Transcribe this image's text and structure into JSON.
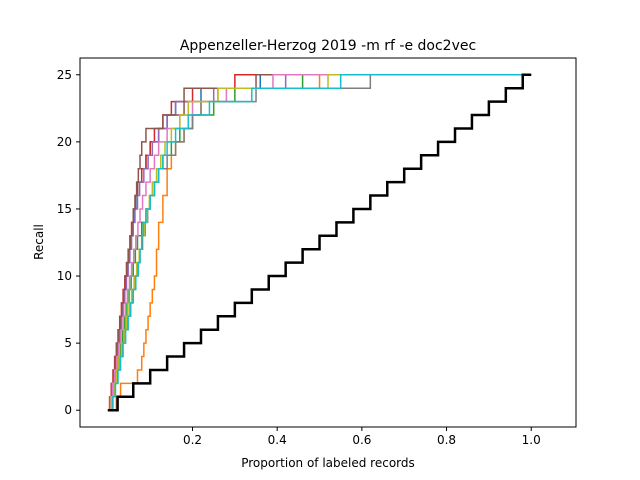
{
  "chart_data": {
    "type": "line",
    "title": "Appenzeller-Herzog 2019 -m rf -e doc2vec",
    "xlabel": "Proportion of labeled records",
    "ylabel": "Recall",
    "xlim": [
      -0.0658,
      1.1058
    ],
    "ylim": [
      -1.25,
      26.25
    ],
    "x_ticks": [
      0.2,
      0.4,
      0.6,
      0.8,
      1.0
    ],
    "x_tick_labels": [
      "0.2",
      "0.4",
      "0.6",
      "0.8",
      "1.0"
    ],
    "y_ticks": [
      0,
      5,
      10,
      15,
      20,
      25
    ],
    "y_tick_labels": [
      "0",
      "5",
      "10",
      "15",
      "20",
      "25"
    ],
    "grid": false,
    "legend": "none",
    "step_style": "post",
    "baseline": {
      "color": "#000000",
      "x": [
        0.0,
        0.023,
        0.06,
        0.1,
        0.14,
        0.18,
        0.22,
        0.26,
        0.3,
        0.34,
        0.38,
        0.42,
        0.46,
        0.5,
        0.54,
        0.58,
        0.62,
        0.66,
        0.7,
        0.74,
        0.78,
        0.82,
        0.86,
        0.9,
        0.94,
        0.98,
        1.0
      ],
      "y": [
        0,
        1,
        2,
        3,
        4,
        5,
        6,
        7,
        8,
        9,
        10,
        11,
        12,
        13,
        14,
        15,
        16,
        17,
        18,
        19,
        20,
        21,
        22,
        23,
        24,
        25,
        25
      ]
    },
    "series": [
      {
        "color": "#1f77b4",
        "x": [
          0.0,
          0.006,
          0.01,
          0.014,
          0.018,
          0.022,
          0.026,
          0.03,
          0.034,
          0.038,
          0.042,
          0.046,
          0.05,
          0.054,
          0.058,
          0.062,
          0.066,
          0.07,
          0.08,
          0.09,
          0.1,
          0.12,
          0.14,
          0.16,
          0.22,
          0.36,
          0.6,
          1.0
        ],
        "y": [
          0,
          1,
          2,
          3,
          4,
          5,
          6,
          7,
          8,
          9,
          10,
          11,
          12,
          13,
          14,
          15,
          16,
          17,
          18,
          19,
          20,
          21,
          22,
          23,
          24,
          25,
          25,
          25
        ]
      },
      {
        "color": "#ff7f0e",
        "x": [
          0.0,
          0.02,
          0.03,
          0.07,
          0.08,
          0.085,
          0.09,
          0.095,
          0.1,
          0.105,
          0.11,
          0.115,
          0.12,
          0.13,
          0.14,
          0.15,
          0.16,
          0.18,
          0.2,
          0.22,
          0.24,
          0.26,
          0.3,
          0.35,
          0.5,
          0.6,
          1.0
        ],
        "y": [
          0,
          1,
          2,
          3,
          4,
          5,
          6,
          7,
          8,
          9,
          10,
          12,
          14,
          16,
          18,
          19,
          20,
          21,
          22,
          23,
          23,
          24,
          24,
          24,
          25,
          25,
          25
        ]
      },
      {
        "color": "#2ca02c",
        "x": [
          0.0,
          0.01,
          0.015,
          0.02,
          0.025,
          0.03,
          0.035,
          0.04,
          0.045,
          0.05,
          0.055,
          0.06,
          0.065,
          0.07,
          0.08,
          0.09,
          0.1,
          0.11,
          0.12,
          0.13,
          0.15,
          0.17,
          0.2,
          0.25,
          0.3,
          0.46,
          1.0
        ],
        "y": [
          0,
          1,
          2,
          3,
          4,
          5,
          6,
          7,
          8,
          9,
          10,
          11,
          12,
          13,
          14,
          15,
          16,
          17,
          18,
          19,
          20,
          21,
          22,
          23,
          24,
          25,
          25
        ]
      },
      {
        "color": "#d62728",
        "x": [
          0.0,
          0.004,
          0.008,
          0.012,
          0.016,
          0.02,
          0.024,
          0.028,
          0.032,
          0.036,
          0.04,
          0.044,
          0.048,
          0.052,
          0.056,
          0.06,
          0.065,
          0.07,
          0.08,
          0.09,
          0.1,
          0.11,
          0.13,
          0.15,
          0.2,
          0.3,
          1.0
        ],
        "y": [
          0,
          1,
          2,
          3,
          4,
          5,
          6,
          7,
          8,
          9,
          10,
          11,
          12,
          13,
          14,
          15,
          16,
          17,
          18,
          19,
          20,
          21,
          22,
          23,
          24,
          25,
          25
        ]
      },
      {
        "color": "#9467bd",
        "x": [
          0.0,
          0.008,
          0.012,
          0.016,
          0.02,
          0.024,
          0.028,
          0.032,
          0.036,
          0.04,
          0.044,
          0.048,
          0.052,
          0.056,
          0.06,
          0.064,
          0.07,
          0.075,
          0.085,
          0.095,
          0.105,
          0.12,
          0.14,
          0.16,
          0.25,
          0.42,
          1.0
        ],
        "y": [
          0,
          1,
          2,
          3,
          4,
          5,
          6,
          7,
          8,
          9,
          10,
          11,
          12,
          13,
          14,
          15,
          16,
          17,
          18,
          19,
          20,
          21,
          22,
          23,
          24,
          25,
          25
        ]
      },
      {
        "color": "#8c564b",
        "x": [
          0.0,
          0.005,
          0.009,
          0.013,
          0.017,
          0.021,
          0.025,
          0.029,
          0.033,
          0.037,
          0.041,
          0.045,
          0.049,
          0.053,
          0.057,
          0.06,
          0.064,
          0.068,
          0.072,
          0.076,
          0.08,
          0.09,
          0.1,
          0.13,
          0.18,
          0.35,
          1.0
        ],
        "y": [
          0,
          1,
          2,
          3,
          4,
          5,
          6,
          7,
          8,
          9,
          10,
          11,
          12,
          13,
          14,
          15,
          16,
          17,
          18,
          19,
          20,
          21,
          21,
          22,
          24,
          25,
          25
        ]
      },
      {
        "color": "#e377c2",
        "x": [
          0.0,
          0.006,
          0.011,
          0.016,
          0.021,
          0.026,
          0.031,
          0.036,
          0.041,
          0.046,
          0.051,
          0.056,
          0.061,
          0.066,
          0.071,
          0.076,
          0.082,
          0.09,
          0.1,
          0.11,
          0.12,
          0.14,
          0.17,
          0.2,
          0.28,
          0.39,
          1.0
        ],
        "y": [
          0,
          1,
          2,
          3,
          4,
          5,
          6,
          7,
          8,
          9,
          10,
          11,
          12,
          13,
          14,
          15,
          16,
          17,
          18,
          19,
          20,
          21,
          22,
          23,
          24,
          25,
          25
        ]
      },
      {
        "color": "#7f7f7f",
        "x": [
          0.0,
          0.01,
          0.016,
          0.022,
          0.028,
          0.034,
          0.04,
          0.046,
          0.052,
          0.058,
          0.064,
          0.07,
          0.076,
          0.082,
          0.088,
          0.094,
          0.1,
          0.11,
          0.12,
          0.14,
          0.16,
          0.18,
          0.2,
          0.22,
          0.35,
          0.62,
          1.0
        ],
        "y": [
          0,
          1,
          2,
          3,
          4,
          5,
          6,
          7,
          8,
          9,
          10,
          11,
          12,
          13,
          14,
          15,
          16,
          17,
          18,
          19,
          20,
          21,
          22,
          23,
          24,
          25,
          25
        ]
      },
      {
        "color": "#bcbd22",
        "x": [
          0.0,
          0.008,
          0.014,
          0.02,
          0.026,
          0.032,
          0.038,
          0.044,
          0.05,
          0.056,
          0.062,
          0.068,
          0.074,
          0.08,
          0.086,
          0.092,
          0.098,
          0.105,
          0.115,
          0.125,
          0.135,
          0.15,
          0.17,
          0.19,
          0.26,
          0.52,
          1.0
        ],
        "y": [
          0,
          1,
          2,
          3,
          4,
          5,
          6,
          7,
          8,
          9,
          10,
          11,
          12,
          13,
          14,
          15,
          16,
          17,
          18,
          19,
          20,
          21,
          22,
          23,
          24,
          25,
          25
        ]
      },
      {
        "color": "#17becf",
        "x": [
          0.0,
          0.012,
          0.018,
          0.024,
          0.03,
          0.036,
          0.042,
          0.048,
          0.054,
          0.06,
          0.066,
          0.072,
          0.076,
          0.08,
          0.084,
          0.09,
          0.1,
          0.11,
          0.12,
          0.13,
          0.14,
          0.16,
          0.19,
          0.24,
          0.34,
          0.55,
          1.0
        ],
        "y": [
          0,
          1,
          2,
          3,
          4,
          5,
          6,
          7,
          8,
          9,
          10,
          11,
          12,
          13,
          14,
          15,
          16,
          17,
          18,
          19,
          20,
          21,
          22,
          23,
          24,
          25,
          25
        ]
      }
    ]
  }
}
